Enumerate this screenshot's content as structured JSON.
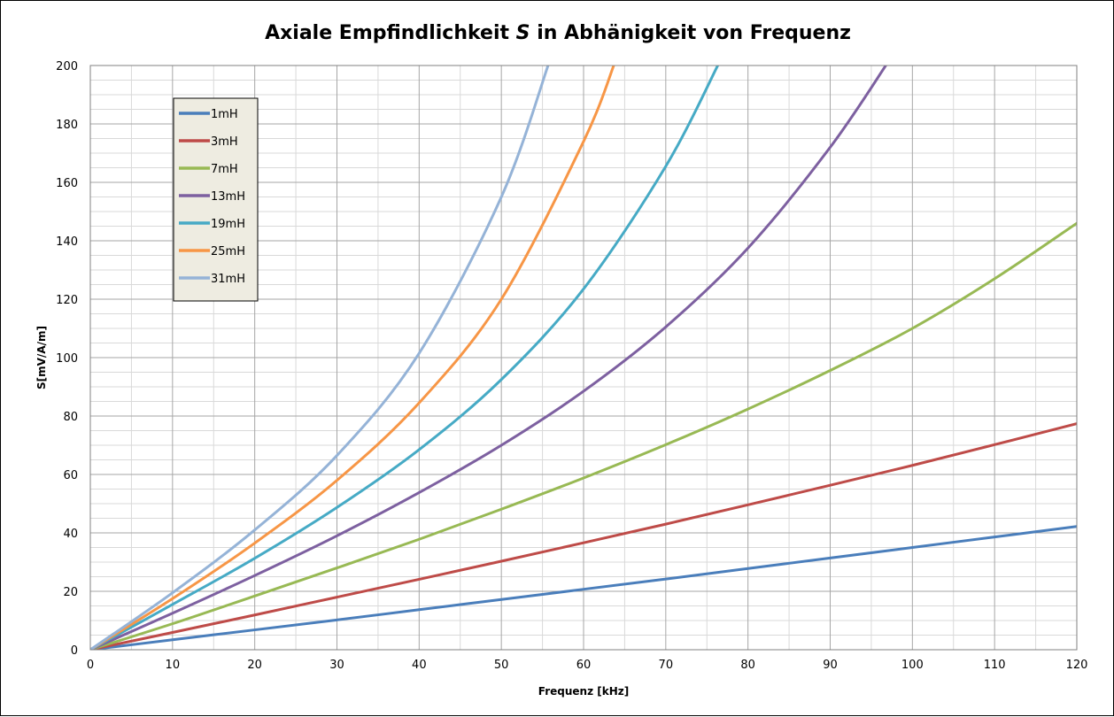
{
  "chart_data": {
    "type": "line",
    "title_parts": [
      "Axiale Empfindlichkeit ",
      "S",
      " in Abhänigkeit von Frequenz"
    ],
    "xlabel": "Frequenz [kHz]",
    "ylabel": "S[mV/A/m]",
    "xlim": [
      0,
      120
    ],
    "ylim": [
      0,
      200
    ],
    "x_major_ticks": [
      0,
      10,
      20,
      30,
      40,
      50,
      60,
      70,
      80,
      90,
      100,
      110,
      120
    ],
    "x_minor_step": 5,
    "y_major_ticks": [
      0,
      20,
      40,
      60,
      80,
      100,
      120,
      140,
      160,
      180,
      200
    ],
    "y_minor_step": 5,
    "grid": true,
    "legend_position": "top-left",
    "series": [
      {
        "name": "1mH",
        "color": "#4A7EBB",
        "x": [
          0,
          10,
          20,
          30,
          40,
          50,
          60,
          70,
          80,
          90,
          100,
          110,
          120
        ],
        "y": [
          0,
          3.4,
          6.8,
          10.2,
          13.7,
          17.2,
          20.7,
          24.2,
          27.8,
          31.4,
          35.0,
          38.6,
          42.2
        ]
      },
      {
        "name": "3mH",
        "color": "#BE4B48",
        "x": [
          0,
          10,
          20,
          30,
          40,
          50,
          60,
          70,
          80,
          90,
          100,
          110,
          120
        ],
        "y": [
          0,
          5.9,
          11.9,
          18.0,
          24.1,
          30.3,
          36.6,
          43.0,
          49.6,
          56.3,
          63.1,
          70.2,
          77.4
        ]
      },
      {
        "name": "7mH",
        "color": "#98B954",
        "x": [
          0,
          10,
          20,
          30,
          40,
          50,
          60,
          70,
          80,
          90,
          100,
          110,
          120
        ],
        "y": [
          0,
          8.9,
          18.4,
          28.0,
          37.8,
          48.1,
          58.8,
          70.2,
          82.4,
          95.6,
          110.0,
          127.0,
          146.0
        ]
      },
      {
        "name": "13mH",
        "color": "#7D60A0",
        "x": [
          0,
          10,
          20,
          30,
          40,
          50,
          60,
          70,
          80,
          90,
          97
        ],
        "y": [
          0,
          12.5,
          25.4,
          39.0,
          53.8,
          70.0,
          88.5,
          110.5,
          137.5,
          172.0,
          201.0
        ]
      },
      {
        "name": "19mH",
        "color": "#46AAC5",
        "x": [
          0,
          10,
          20,
          30,
          40,
          50,
          60,
          70,
          76.5
        ],
        "y": [
          0,
          15.5,
          31.3,
          48.7,
          68.5,
          92.5,
          123.5,
          165.5,
          201.0
        ]
      },
      {
        "name": "25mH",
        "color": "#F79646",
        "x": [
          0,
          10,
          20,
          30,
          40,
          50,
          60,
          63.8
        ],
        "y": [
          0,
          17.5,
          36.5,
          58.0,
          84.5,
          120.0,
          174.0,
          201.0
        ]
      },
      {
        "name": "31mH",
        "color": "#95B3D7",
        "x": [
          0,
          10,
          20,
          30,
          40,
          50,
          55.8
        ],
        "y": [
          0,
          19.5,
          41.0,
          66.5,
          101.5,
          155.0,
          201.0
        ]
      }
    ]
  }
}
